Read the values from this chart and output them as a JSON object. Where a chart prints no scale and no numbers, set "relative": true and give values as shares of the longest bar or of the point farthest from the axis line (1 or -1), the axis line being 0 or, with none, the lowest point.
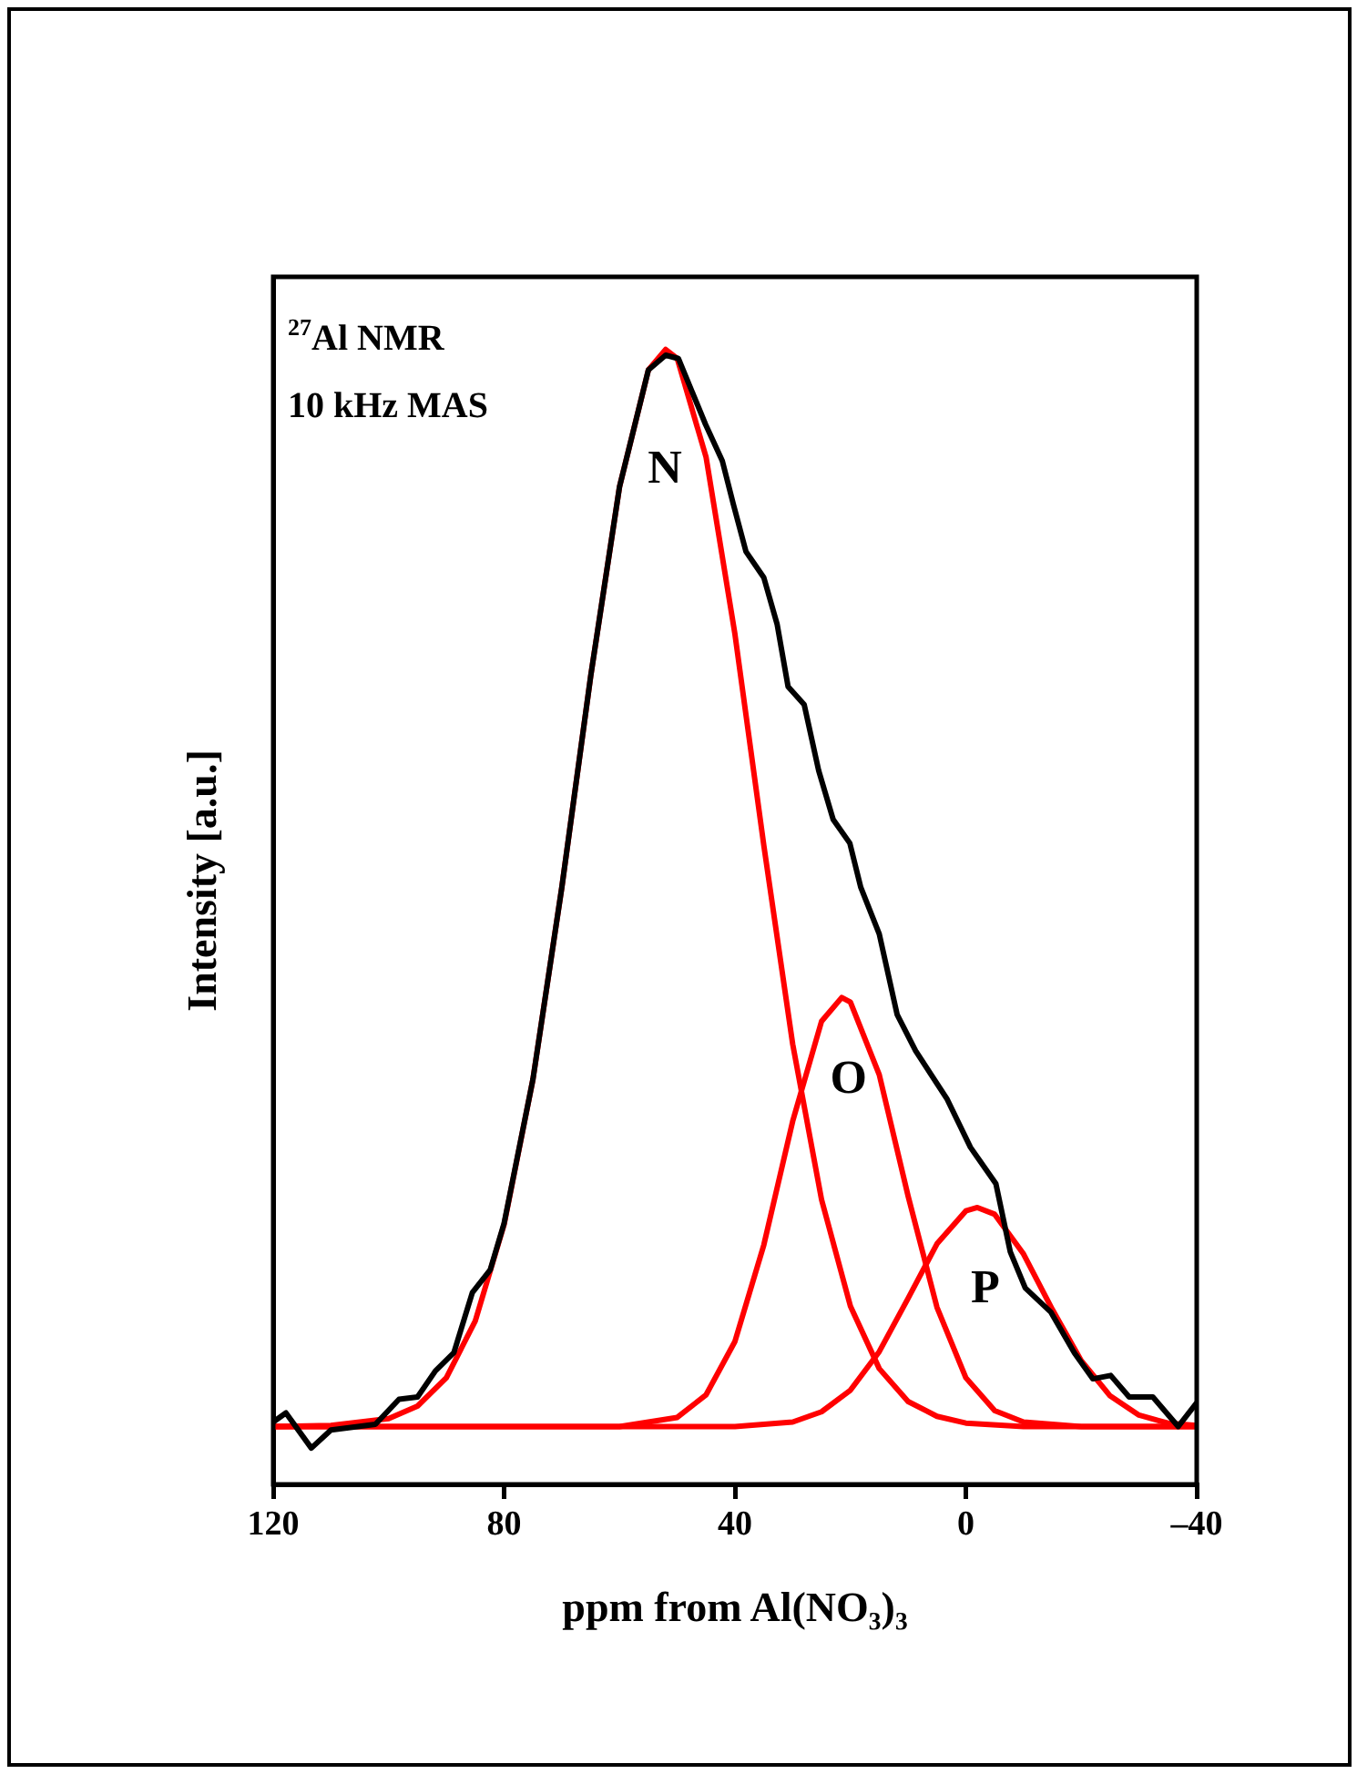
{
  "chart_data": {
    "type": "line",
    "relative": true,
    "xlabel": "ppm from Al(NO₃)₃",
    "ylabel": "Intensity [a.u.]",
    "xlim": [
      120,
      -40
    ],
    "xticks": [
      120,
      80,
      40,
      0,
      {
        "value": -40,
        "label": "–40"
      }
    ],
    "annotations": [
      "$^{27}$Al NMR",
      "10 kHz MAS",
      "N",
      "O",
      "P"
    ],
    "series": [
      {
        "color": "#000000",
        "x": [
          120,
          117.8,
          113.4,
          110,
          102.3,
          98.2,
          95,
          91.9,
          88.7,
          85.5,
          82.4,
          80,
          75,
          70,
          65,
          60,
          55,
          52,
          49.8,
          45.1,
          42.2,
          40.3,
          38.1,
          35,
          32.7,
          30.8,
          28,
          25.5,
          23,
          20.1,
          18.2,
          15,
          11.9,
          8.7,
          3.3,
          -0.8,
          -5.2,
          -7.7,
          -10.3,
          -14.7,
          -18.8,
          -22,
          -25.1,
          -28.3,
          -32.4,
          -36.8,
          -40
        ],
        "values": [
          0.055,
          0.063,
          0.032,
          0.048,
          0.053,
          0.075,
          0.077,
          0.1,
          0.116,
          0.169,
          0.189,
          0.23,
          0.357,
          0.526,
          0.712,
          0.879,
          0.982,
          0.995,
          0.992,
          0.934,
          0.902,
          0.864,
          0.822,
          0.799,
          0.758,
          0.703,
          0.687,
          0.629,
          0.586,
          0.565,
          0.526,
          0.485,
          0.414,
          0.382,
          0.34,
          0.297,
          0.265,
          0.205,
          0.173,
          0.152,
          0.116,
          0.093,
          0.096,
          0.077,
          0.077,
          0.051,
          0.072
        ]
      },
      {
        "color": "#ff0000",
        "x": [
          120,
          110,
          100,
          95,
          90,
          85,
          80,
          75,
          70,
          65,
          60,
          55,
          52,
          50,
          45,
          40,
          35,
          30,
          25,
          20,
          15,
          10,
          5,
          0,
          -10,
          -40
        ],
        "values": [
          0.051,
          0.052,
          0.058,
          0.069,
          0.094,
          0.144,
          0.229,
          0.357,
          0.526,
          0.712,
          0.879,
          0.982,
          1.0,
          0.992,
          0.905,
          0.749,
          0.563,
          0.388,
          0.251,
          0.157,
          0.102,
          0.073,
          0.06,
          0.054,
          0.051,
          0.051
        ]
      },
      {
        "color": "#ff0000",
        "x": [
          120,
          60,
          50,
          45,
          40,
          35,
          30,
          25,
          21.5,
          20,
          15,
          10,
          5,
          0,
          -5,
          -10,
          -20,
          -40
        ],
        "values": [
          0.051,
          0.051,
          0.059,
          0.079,
          0.126,
          0.211,
          0.32,
          0.408,
          0.429,
          0.425,
          0.361,
          0.254,
          0.156,
          0.094,
          0.065,
          0.055,
          0.051,
          0.051
        ]
      },
      {
        "color": "#ff0000",
        "x": [
          120,
          40,
          30,
          25,
          20,
          15,
          10,
          5,
          0,
          -2,
          -5,
          -10,
          -15,
          -20,
          -25,
          -30,
          -35,
          -40
        ],
        "values": [
          0.051,
          0.051,
          0.055,
          0.064,
          0.083,
          0.117,
          0.164,
          0.212,
          0.241,
          0.244,
          0.238,
          0.203,
          0.154,
          0.109,
          0.078,
          0.061,
          0.054,
          0.052
        ]
      }
    ]
  }
}
